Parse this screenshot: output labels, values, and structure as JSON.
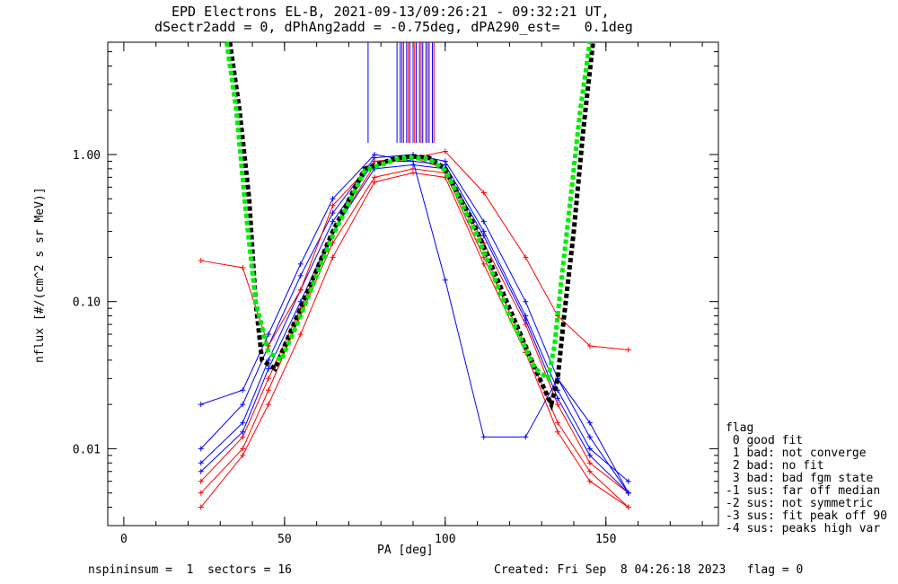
{
  "header": {
    "title_line1": "EPD Electrons EL-B, 2021-09-13/09:26:21 - 09:32:21 UT,",
    "title_line2": "dSectr2add = 0, dPhAng2add = -0.75deg, dPA290_est=   0.1deg"
  },
  "footer": {
    "left": "nspininsum =  1  sectors = 16",
    "right": "Created: Fri Sep  8 04:26:18 2023   flag = 0"
  },
  "legend": {
    "title": "flag",
    "items": [
      " 0 good fit",
      " 1 bad: not converge",
      " 2 bad: no fit",
      " 3 bad: bad fgm state",
      "-1 sus: far off median",
      "-2 sus: not symmetric",
      "-3 sus: fit peak off 90",
      "-4 sus: peaks high var"
    ]
  },
  "colors": {
    "series_red": "#ff0000",
    "series_blue": "#0000ff",
    "fit_black": "#000000",
    "fit_green": "#00ee00"
  },
  "chart_data": {
    "type": "line",
    "title": "EPD Electrons EL-B, 2021-09-13/09:26:21 - 09:32:21 UT,",
    "xlabel": "PA [deg]",
    "ylabel": "nflux [#/(cm^2 s sr MeV)]",
    "xlim": [
      -5,
      185
    ],
    "ylim": [
      0.003,
      5.8
    ],
    "yscale": "log",
    "xticks": [
      0,
      50,
      100,
      150
    ],
    "xtick_labels": [
      "0",
      "50",
      "100",
      "150"
    ],
    "yticks": [
      0.01,
      0.1,
      1.0
    ],
    "ytick_labels": [
      "0.01",
      "0.10",
      "1.00"
    ],
    "grid": false,
    "legend_position": "outside-right",
    "sample_pa": [
      24,
      37,
      45,
      55,
      65,
      78,
      90,
      100,
      112,
      125,
      135,
      145,
      157
    ],
    "series": [
      {
        "color": "red",
        "values": [
          0.006,
          0.012,
          0.03,
          0.09,
          0.3,
          0.85,
          0.95,
          0.8,
          0.25,
          0.07,
          0.02,
          0.008,
          0.005
        ]
      },
      {
        "color": "blue",
        "values": [
          0.008,
          0.015,
          0.04,
          0.12,
          0.35,
          0.9,
          0.9,
          0.85,
          0.3,
          0.08,
          0.025,
          0.01,
          0.006
        ]
      },
      {
        "color": "red",
        "values": [
          0.005,
          0.01,
          0.025,
          0.08,
          0.25,
          0.7,
          0.8,
          0.75,
          0.2,
          0.05,
          0.015,
          0.007,
          0.004
        ]
      },
      {
        "color": "blue",
        "values": [
          0.01,
          0.02,
          0.05,
          0.15,
          0.4,
          0.95,
          1.0,
          0.9,
          0.35,
          0.1,
          0.03,
          0.012,
          0.005
        ]
      },
      {
        "color": "red",
        "values": [
          0.004,
          0.009,
          0.02,
          0.06,
          0.2,
          0.65,
          0.75,
          0.7,
          0.18,
          0.045,
          0.013,
          0.006,
          0.004
        ]
      },
      {
        "color": "blue",
        "values": [
          0.007,
          0.013,
          0.035,
          0.1,
          0.3,
          0.8,
          0.85,
          0.8,
          0.28,
          0.075,
          0.022,
          0.009,
          0.005
        ]
      },
      {
        "color": "red",
        "values": [
          0.19,
          0.17,
          0.05,
          0.12,
          0.45,
          0.9,
          0.95,
          1.05,
          0.55,
          0.2,
          0.08,
          0.05,
          0.047
        ]
      },
      {
        "color": "blue",
        "values": [
          0.02,
          0.025,
          0.06,
          0.18,
          0.5,
          1.0,
          0.9,
          0.14,
          0.012,
          0.012,
          0.03,
          0.015,
          0.005
        ]
      }
    ],
    "fits": [
      {
        "name": "black",
        "x": [
          33,
          36,
          39,
          41,
          43,
          47,
          55,
          65,
          75,
          85,
          90,
          95,
          100,
          110,
          120,
          128,
          133,
          135,
          137,
          140,
          143,
          146
        ],
        "values": [
          5.8,
          2.0,
          0.5,
          0.1,
          0.04,
          0.035,
          0.09,
          0.3,
          0.8,
          0.95,
          0.97,
          0.95,
          0.8,
          0.3,
          0.09,
          0.035,
          0.02,
          0.03,
          0.08,
          0.3,
          1.5,
          5.8
        ]
      },
      {
        "name": "green",
        "x": [
          32,
          35,
          38,
          41,
          45,
          49,
          55,
          65,
          75,
          85,
          90,
          95,
          100,
          110,
          120,
          128,
          132,
          134,
          136,
          139,
          142,
          145
        ],
        "values": [
          5.8,
          2.0,
          0.4,
          0.1,
          0.045,
          0.04,
          0.08,
          0.28,
          0.78,
          0.93,
          0.95,
          0.93,
          0.78,
          0.28,
          0.08,
          0.035,
          0.03,
          0.05,
          0.13,
          0.5,
          2.0,
          5.8
        ]
      }
    ],
    "vertical_lines": {
      "blue_x": [
        76,
        85,
        86,
        87,
        88,
        89,
        90,
        91,
        92,
        93,
        94,
        95,
        96
      ],
      "red_x": [
        86.5,
        88.5,
        90.5,
        92.5,
        94.5,
        96.5
      ],
      "y_bottom": 1.2
    }
  }
}
